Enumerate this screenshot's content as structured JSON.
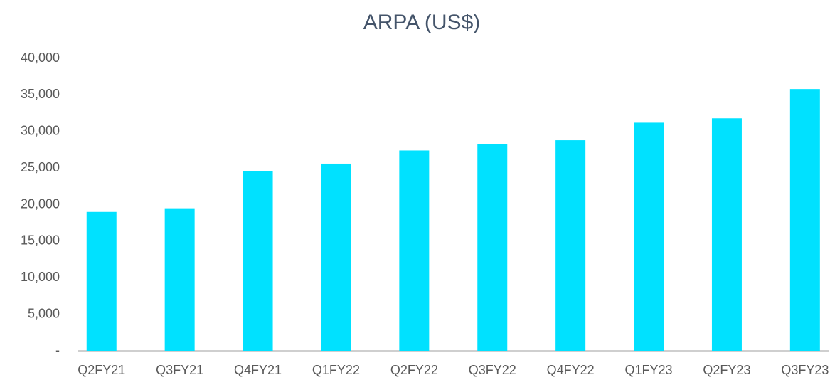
{
  "chart_data": {
    "type": "bar",
    "title": "ARPA (US$)",
    "categories": [
      "Q2FY21",
      "Q3FY21",
      "Q4FY21",
      "Q1FY22",
      "Q2FY22",
      "Q3FY22",
      "Q4FY22",
      "Q1FY23",
      "Q2FY23",
      "Q3FY23"
    ],
    "values": [
      19000,
      19500,
      24600,
      25600,
      27400,
      28300,
      28800,
      31200,
      31800,
      35800
    ],
    "color": "#00e1ff",
    "ylim": [
      0,
      40000
    ],
    "yticks": [
      {
        "value": 0,
        "label": "-"
      },
      {
        "value": 5000,
        "label": "5,000"
      },
      {
        "value": 10000,
        "label": "10,000"
      },
      {
        "value": 15000,
        "label": "15,000"
      },
      {
        "value": 20000,
        "label": "20,000"
      },
      {
        "value": 25000,
        "label": "25,000"
      },
      {
        "value": 30000,
        "label": "30,000"
      },
      {
        "value": 35000,
        "label": "35,000"
      },
      {
        "value": 40000,
        "label": "40,000"
      }
    ],
    "grid": false
  }
}
